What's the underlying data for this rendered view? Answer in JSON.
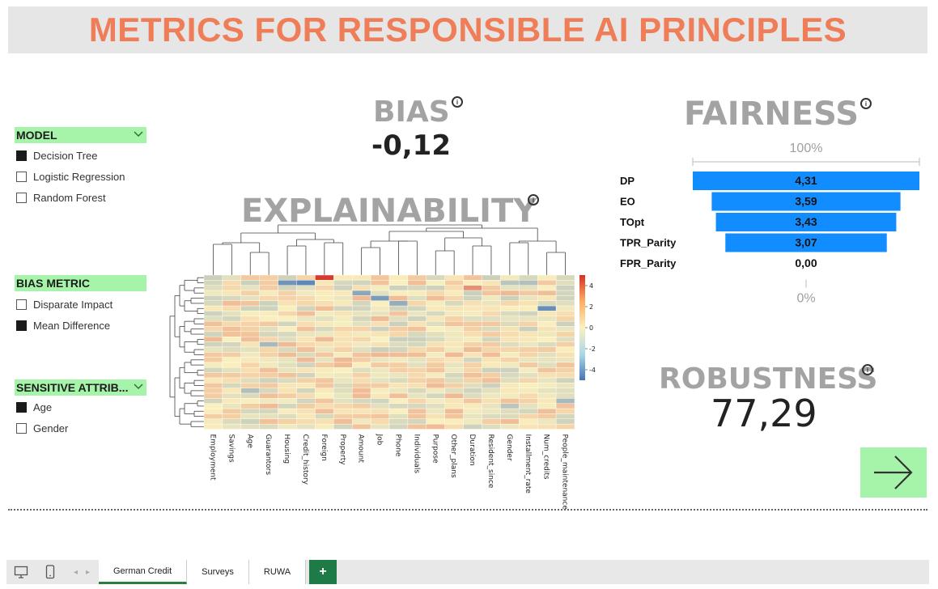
{
  "title": "METRICS FOR RESPONSIBLE AI PRINCIPLES",
  "slicers": {
    "model": {
      "label": "MODEL",
      "items": [
        {
          "label": "Decision Tree",
          "checked": true
        },
        {
          "label": "Logistic Regression",
          "checked": false
        },
        {
          "label": "Random Forest",
          "checked": false
        }
      ]
    },
    "bias_metric": {
      "label": "BIAS METRIC",
      "items": [
        {
          "label": "Disparate Impact",
          "checked": false
        },
        {
          "label": "Mean Difference",
          "checked": true
        }
      ]
    },
    "sensitive": {
      "label": "SENSITIVE ATTRIB...",
      "items": [
        {
          "label": "Age",
          "checked": true
        },
        {
          "label": "Gender",
          "checked": false
        }
      ]
    }
  },
  "bias": {
    "title": "BIAS",
    "value": "-0,12"
  },
  "explainability": {
    "title": "EXPLAINABILITY"
  },
  "fairness": {
    "title": "FAIRNESS",
    "top_label": "100%",
    "bottom_label": "0%"
  },
  "robustness": {
    "title": "ROBUSTNESS",
    "value": "77,29"
  },
  "info_glyph": "i",
  "colors": {
    "title": "#ef7e58",
    "accent_green": "#a6f4a9",
    "bar_blue": "#118dff",
    "metric_gray": "#a3a3a3"
  },
  "chart_data": [
    {
      "type": "bar",
      "orientation": "horizontal-funnel",
      "categories": [
        "DP",
        "EO",
        "TOpt",
        "TPR_Parity",
        "FPR_Parity"
      ],
      "values": [
        4.31,
        3.59,
        3.43,
        3.07,
        0.0
      ],
      "value_labels": [
        "4,31",
        "3,59",
        "3,43",
        "3,07",
        "0,00"
      ],
      "title": "",
      "axis_labels": {
        "top": "100%",
        "bottom": "0%"
      }
    },
    {
      "type": "heatmap",
      "title": "",
      "columns": [
        "Employment",
        "Savings",
        "Age",
        "Guarantors",
        "Housing",
        "Credit_history",
        "Foreign",
        "Property",
        "Amount",
        "Job",
        "Phone",
        "Individuals",
        "Purpose",
        "Other_plans",
        "Duration",
        "Resident_since",
        "Gender",
        "Installment_rate",
        "Num_credits",
        "People_maintenance"
      ],
      "colorbar_ticks": [
        "4",
        "2",
        "0",
        "-2",
        "-4"
      ],
      "colorbar_range": [
        -5,
        5
      ],
      "rows": 30,
      "dendrograms": [
        "top",
        "left"
      ]
    }
  ],
  "tabs": {
    "items": [
      {
        "label": "German Credit",
        "active": true
      },
      {
        "label": "Surveys",
        "active": false
      },
      {
        "label": "RUWA",
        "active": false
      }
    ],
    "add_label": "+"
  }
}
